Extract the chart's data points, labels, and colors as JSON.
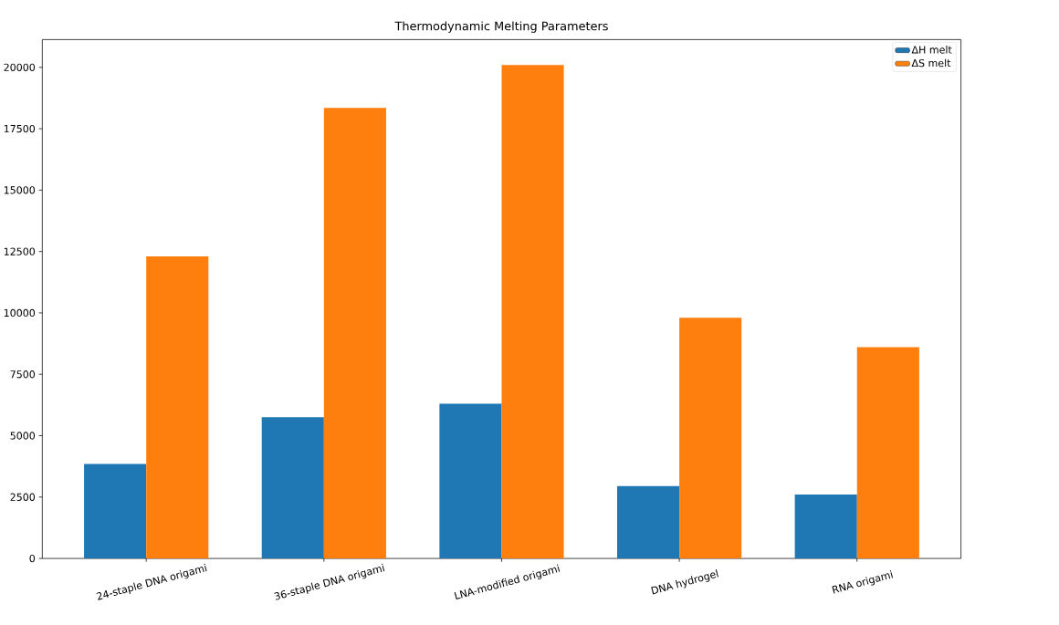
{
  "chart_data": {
    "type": "bar",
    "title": "Thermodynamic Melting Parameters",
    "categories": [
      "24-staple DNA origami",
      "36-staple DNA origami",
      "LNA-modified origami",
      "DNA hydrogel",
      "RNA origami"
    ],
    "series": [
      {
        "name": "ΔH melt",
        "color": "#1f77b4",
        "values": [
          3850,
          5750,
          6300,
          2950,
          2600
        ]
      },
      {
        "name": "ΔS melt",
        "color": "#ff7f0e",
        "values": [
          12300,
          18350,
          20100,
          9800,
          8600
        ]
      }
    ],
    "ylim": [
      0,
      21131
    ],
    "yticks": [
      0,
      2500,
      5000,
      7500,
      10000,
      12500,
      15000,
      17500,
      20000
    ],
    "legend": "top right"
  }
}
